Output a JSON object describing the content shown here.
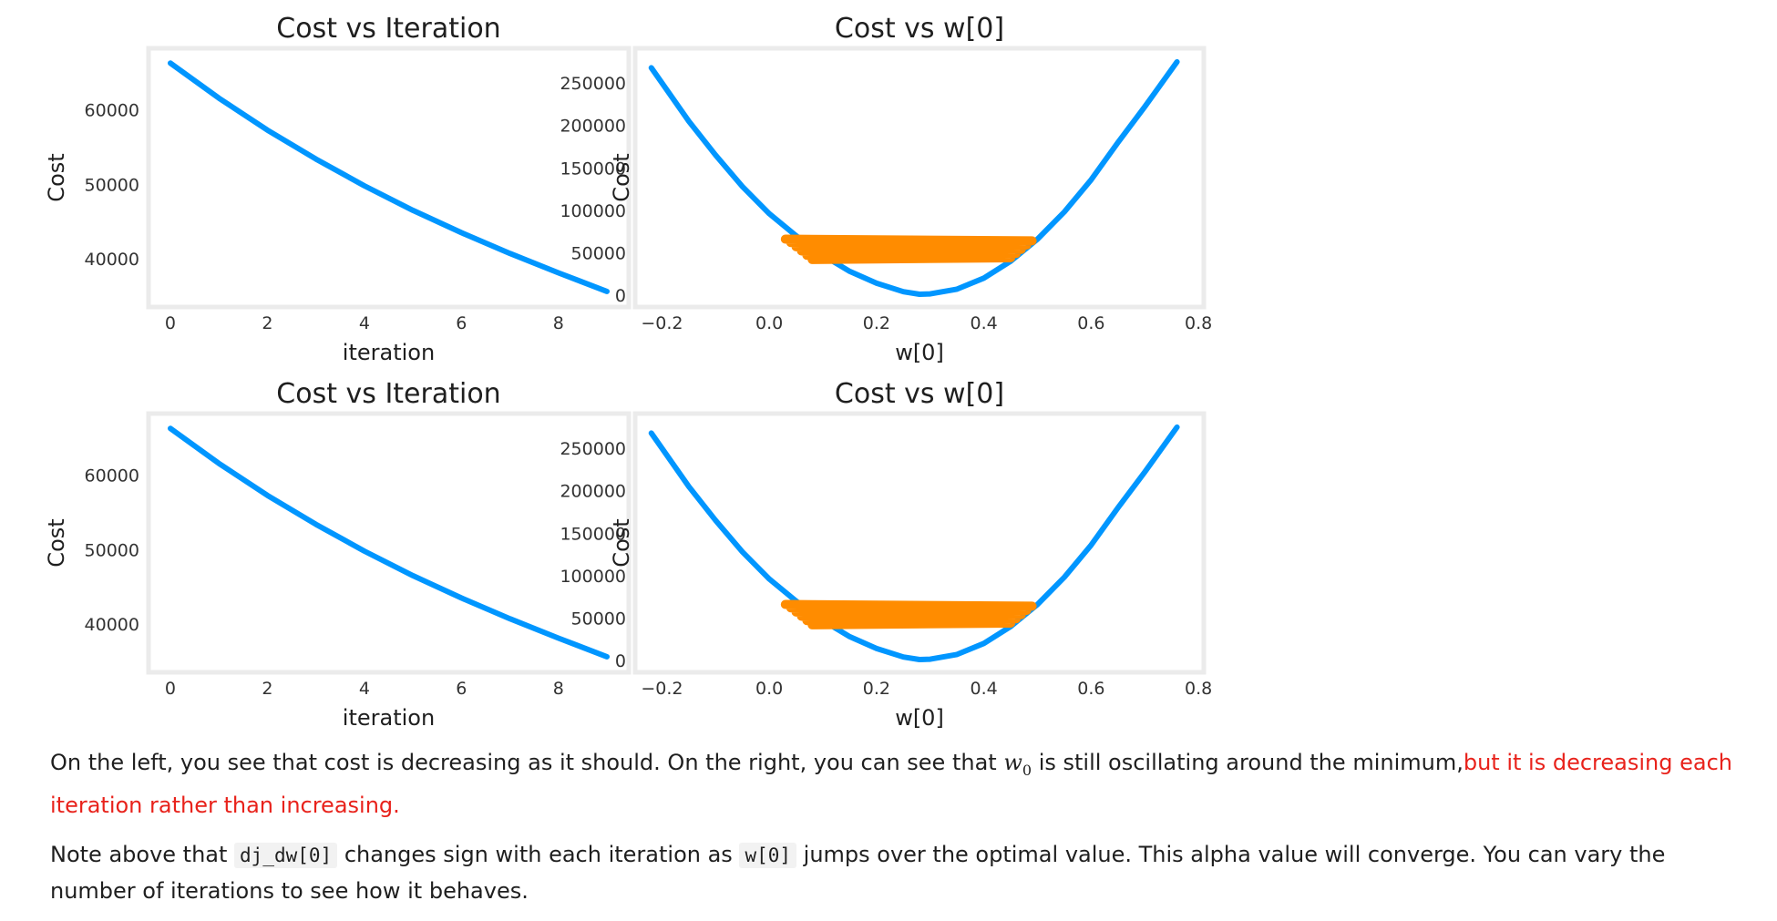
{
  "chart_data": [
    {
      "type": "line",
      "title": "Cost vs Iteration",
      "xlabel": "iteration",
      "ylabel": "Cost",
      "xticks": [
        0,
        2,
        4,
        6,
        8
      ],
      "yticks": [
        40000,
        50000,
        60000
      ],
      "xlim": [
        -0.45,
        9.45
      ],
      "ylim": [
        33500,
        68300
      ],
      "grid": false,
      "series": [
        {
          "color": "#0096ff",
          "x": [
            0,
            1,
            2,
            3,
            4,
            5,
            6,
            7,
            8,
            9
          ],
          "y": [
            66300,
            61600,
            57300,
            53400,
            49800,
            46500,
            43500,
            40700,
            38100,
            35600
          ]
        }
      ]
    },
    {
      "type": "line",
      "title": "Cost vs w[0]",
      "xlabel": "w[0]",
      "ylabel": "Cost",
      "xticks": [
        -0.2,
        0.0,
        0.2,
        0.4,
        0.6,
        0.8
      ],
      "yticks": [
        0,
        50000,
        100000,
        150000,
        200000,
        250000
      ],
      "xlim": [
        -0.25,
        0.81
      ],
      "ylim": [
        -14000,
        291000
      ],
      "grid": false,
      "series": [
        {
          "color": "#0096ff",
          "x": [
            -0.22,
            -0.15,
            -0.1,
            -0.05,
            0.0,
            0.05,
            0.1,
            0.15,
            0.2,
            0.25,
            0.28,
            0.3,
            0.35,
            0.4,
            0.45,
            0.5,
            0.55,
            0.6,
            0.65,
            0.7,
            0.76
          ],
          "y": [
            268000,
            205000,
            165000,
            128000,
            96000,
            70000,
            47000,
            28000,
            14000,
            4000,
            1000,
            1500,
            7000,
            20000,
            40000,
            66000,
            98000,
            136000,
            180000,
            222000,
            275000
          ]
        },
        {
          "color": "#ff8c00",
          "x": [
            0.03,
            0.49,
            0.04,
            0.48,
            0.05,
            0.47,
            0.06,
            0.46,
            0.07,
            0.45,
            0.08
          ],
          "y": [
            66000,
            64000,
            62000,
            59000,
            57000,
            54000,
            52000,
            49000,
            47000,
            44000,
            42000
          ]
        }
      ]
    },
    {
      "type": "line",
      "title": "Cost vs Iteration",
      "xlabel": "iteration",
      "ylabel": "Cost",
      "xticks": [
        0,
        2,
        4,
        6,
        8
      ],
      "yticks": [
        40000,
        50000,
        60000
      ],
      "xlim": [
        -0.45,
        9.45
      ],
      "ylim": [
        33500,
        68300
      ],
      "grid": false,
      "series": [
        {
          "color": "#0096ff",
          "x": [
            0,
            1,
            2,
            3,
            4,
            5,
            6,
            7,
            8,
            9
          ],
          "y": [
            66300,
            61600,
            57300,
            53400,
            49800,
            46500,
            43500,
            40700,
            38100,
            35600
          ]
        }
      ]
    },
    {
      "type": "line",
      "title": "Cost vs w[0]",
      "xlabel": "w[0]",
      "ylabel": "Cost",
      "xticks": [
        -0.2,
        0.0,
        0.2,
        0.4,
        0.6,
        0.8
      ],
      "yticks": [
        0,
        50000,
        100000,
        150000,
        200000,
        250000
      ],
      "xlim": [
        -0.25,
        0.81
      ],
      "ylim": [
        -14000,
        291000
      ],
      "grid": false,
      "series": [
        {
          "color": "#0096ff",
          "x": [
            -0.22,
            -0.15,
            -0.1,
            -0.05,
            0.0,
            0.05,
            0.1,
            0.15,
            0.2,
            0.25,
            0.28,
            0.3,
            0.35,
            0.4,
            0.45,
            0.5,
            0.55,
            0.6,
            0.65,
            0.7,
            0.76
          ],
          "y": [
            268000,
            205000,
            165000,
            128000,
            96000,
            70000,
            47000,
            28000,
            14000,
            4000,
            1000,
            1500,
            7000,
            20000,
            40000,
            66000,
            98000,
            136000,
            180000,
            222000,
            275000
          ]
        },
        {
          "color": "#ff8c00",
          "x": [
            0.03,
            0.49,
            0.04,
            0.48,
            0.05,
            0.47,
            0.06,
            0.46,
            0.07,
            0.45,
            0.08
          ],
          "y": [
            66000,
            64000,
            62000,
            59000,
            57000,
            54000,
            52000,
            49000,
            47000,
            44000,
            42000
          ]
        }
      ]
    }
  ],
  "text": {
    "p1_before": "On the left, you see that cost is decreasing as it should. On the right, you can see that ",
    "p1_math": "w",
    "p1_math_sub": "0",
    "p1_after": " is still oscillating around the minimum,",
    "p1_red": "but it is decreasing each iteration rather than increasing.",
    "p2_a": "Note above that ",
    "p2_code1": "dj_dw[0]",
    "p2_b": " changes sign with each iteration as ",
    "p2_code2": "w[0]",
    "p2_c": " jumps over the optimal value. This alpha value will converge. You can vary the number of iterations to see how it behaves."
  }
}
